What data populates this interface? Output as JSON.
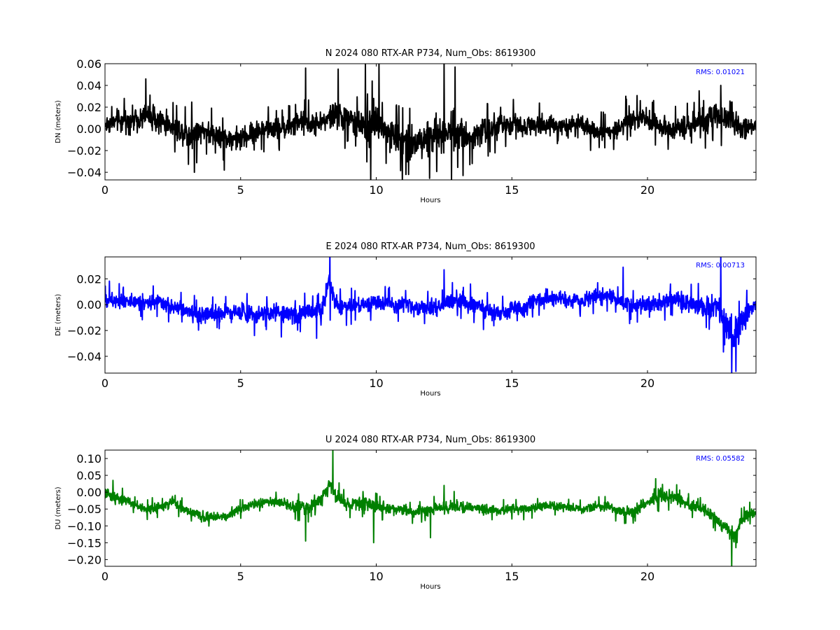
{
  "chart_data": [
    {
      "type": "line",
      "title": "N 2024 080 RTX-AR  P734, Num_Obs: 8619300",
      "xlabel": "Hours",
      "ylabel": "DN (meters)",
      "xlim": [
        0,
        24
      ],
      "ylim": [
        -0.047,
        0.06
      ],
      "xticks": [
        0,
        5,
        10,
        15,
        20
      ],
      "yticks": [
        -0.04,
        -0.02,
        0.0,
        0.02,
        0.04,
        0.06
      ],
      "ytick_labels": [
        "−0.04",
        "−0.02",
        "0.00",
        "0.02",
        "0.04",
        "0.06"
      ],
      "annotation": "RMS:  0.01021",
      "grid": false,
      "series": [
        {
          "color": "#000000",
          "x": [
            0,
            0.5,
            1,
            1.5,
            2,
            2.5,
            3,
            3.3,
            3.5,
            4,
            4.5,
            5,
            5.5,
            6,
            6.5,
            7,
            7.4,
            7.5,
            8,
            8.5,
            9,
            9.5,
            9.7,
            9.9,
            10.2,
            10.5,
            11,
            11.5,
            12,
            12.5,
            12.9,
            13.2,
            13.5,
            14,
            14.5,
            15,
            15.5,
            16,
            16.5,
            17,
            17.5,
            18,
            18.5,
            19,
            19.2,
            19.5,
            20,
            20.5,
            21,
            21.5,
            22,
            22.5,
            23,
            23.5,
            24
          ],
          "center": [
            0.004,
            0.007,
            0.008,
            0.012,
            0.008,
            0.002,
            -0.004,
            -0.006,
            0.0,
            -0.005,
            -0.008,
            -0.01,
            -0.003,
            0.0,
            0.001,
            0.003,
            0.006,
            0.004,
            0.006,
            0.013,
            0.008,
            0.003,
            0.0,
            0.006,
            0.002,
            -0.006,
            -0.01,
            -0.012,
            -0.008,
            -0.004,
            0.0,
            -0.004,
            -0.006,
            0.0,
            0.002,
            0.004,
            0.003,
            0.005,
            0.004,
            0.002,
            0.003,
            -0.002,
            -0.003,
            0.0,
            0.008,
            0.01,
            0.008,
            0.002,
            0.0,
            0.003,
            0.006,
            0.012,
            0.008,
            0.0,
            0.002
          ],
          "amp": [
            0.013,
            0.014,
            0.015,
            0.018,
            0.016,
            0.014,
            0.018,
            0.022,
            0.016,
            0.015,
            0.014,
            0.016,
            0.014,
            0.013,
            0.014,
            0.015,
            0.018,
            0.015,
            0.015,
            0.02,
            0.017,
            0.015,
            0.026,
            0.03,
            0.02,
            0.022,
            0.026,
            0.025,
            0.024,
            0.03,
            0.03,
            0.022,
            0.02,
            0.018,
            0.016,
            0.015,
            0.014,
            0.014,
            0.013,
            0.012,
            0.013,
            0.012,
            0.012,
            0.013,
            0.014,
            0.013,
            0.014,
            0.013,
            0.014,
            0.014,
            0.016,
            0.018,
            0.016,
            0.014,
            0.013
          ],
          "spikes": [
            [
              1.5,
              0.046
            ],
            [
              3.3,
              -0.04
            ],
            [
              4.4,
              -0.038
            ],
            [
              7.4,
              0.056
            ],
            [
              8.6,
              0.055
            ],
            [
              9.6,
              0.06
            ],
            [
              9.8,
              -0.047
            ],
            [
              10.1,
              0.06
            ],
            [
              11.1,
              -0.042
            ],
            [
              12.5,
              0.06
            ],
            [
              12.9,
              0.057
            ],
            [
              13.2,
              -0.043
            ],
            [
              19.2,
              0.03
            ],
            [
              21.9,
              0.035
            ],
            [
              22.7,
              0.04
            ]
          ]
        }
      ]
    },
    {
      "type": "line",
      "title": "E 2024 080 RTX-AR  P734, Num_Obs: 8619300",
      "xlabel": "Hours",
      "ylabel": "DE (meters)",
      "xlim": [
        0,
        24
      ],
      "ylim": [
        -0.053,
        0.037
      ],
      "xticks": [
        0,
        5,
        10,
        15,
        20
      ],
      "yticks": [
        -0.04,
        -0.02,
        0.0,
        0.02
      ],
      "ytick_labels": [
        "−0.04",
        "−0.02",
        "0.00",
        "0.02"
      ],
      "annotation": "RMS:  0.00713",
      "grid": false,
      "series": [
        {
          "color": "#0000ff",
          "x": [
            0,
            0.5,
            1,
            1.5,
            2,
            2.5,
            3,
            3.5,
            4,
            4.5,
            5,
            5.5,
            6,
            6.5,
            7,
            7.5,
            8,
            8.3,
            8.5,
            9,
            9.5,
            10,
            10.5,
            11,
            11.5,
            12,
            12.5,
            13,
            13.5,
            14,
            14.5,
            15,
            15.5,
            16,
            16.5,
            17,
            17.5,
            18,
            18.5,
            19,
            19.5,
            20,
            20.5,
            21,
            21.5,
            22,
            22.5,
            23,
            23.2,
            23.5,
            24
          ],
          "center": [
            0.004,
            0.004,
            0.003,
            0.002,
            0.001,
            -0.002,
            -0.004,
            -0.008,
            -0.006,
            -0.005,
            -0.006,
            -0.008,
            -0.006,
            -0.006,
            -0.008,
            -0.006,
            -0.003,
            0.02,
            0.0,
            -0.002,
            0.0,
            0.002,
            0.0,
            0.0,
            -0.002,
            -0.003,
            0.0,
            0.005,
            0.0,
            -0.004,
            -0.006,
            -0.004,
            -0.002,
            0.004,
            0.005,
            0.004,
            0.003,
            0.006,
            0.008,
            0.003,
            -0.002,
            0.0,
            0.002,
            0.004,
            0.0,
            -0.002,
            0.0,
            -0.018,
            -0.025,
            -0.012,
            0.002
          ],
          "amp": [
            0.009,
            0.009,
            0.009,
            0.009,
            0.008,
            0.009,
            0.009,
            0.009,
            0.01,
            0.009,
            0.01,
            0.01,
            0.009,
            0.009,
            0.01,
            0.01,
            0.009,
            0.015,
            0.01,
            0.009,
            0.009,
            0.009,
            0.009,
            0.009,
            0.009,
            0.009,
            0.01,
            0.012,
            0.01,
            0.01,
            0.01,
            0.01,
            0.009,
            0.009,
            0.009,
            0.009,
            0.009,
            0.009,
            0.009,
            0.009,
            0.009,
            0.009,
            0.009,
            0.01,
            0.01,
            0.012,
            0.014,
            0.018,
            0.02,
            0.014,
            0.011
          ],
          "spikes": [
            [
              8.3,
              0.037
            ],
            [
              8.3,
              -0.012
            ],
            [
              7.8,
              -0.026
            ],
            [
              12.5,
              0.027
            ],
            [
              19.1,
              0.029
            ],
            [
              22.7,
              0.037
            ],
            [
              23.1,
              -0.053
            ],
            [
              6.5,
              -0.025
            ]
          ]
        }
      ]
    },
    {
      "type": "line",
      "title": "U 2024 080 RTX-AR  P734, Num_Obs: 8619300",
      "xlabel": "Hours",
      "ylabel": "DU (meters)",
      "xlim": [
        0,
        24
      ],
      "ylim": [
        -0.22,
        0.125
      ],
      "xticks": [
        0,
        5,
        10,
        15,
        20
      ],
      "yticks": [
        -0.2,
        -0.15,
        -0.1,
        -0.05,
        0.0,
        0.05,
        0.1
      ],
      "ytick_labels": [
        "−0.20",
        "−0.15",
        "−0.10",
        "−0.05",
        "0.00",
        "0.05",
        "0.10"
      ],
      "annotation": "RMS:  0.05582",
      "grid": false,
      "series": [
        {
          "color": "#008000",
          "x": [
            0,
            0.3,
            0.6,
            1,
            1.5,
            2,
            2.5,
            3,
            3.5,
            4,
            4.5,
            5,
            5.5,
            6,
            6.5,
            7,
            7.5,
            8,
            8.3,
            8.5,
            9,
            9.5,
            10,
            10.5,
            11,
            11.5,
            12,
            12.5,
            13,
            13.5,
            14,
            14.5,
            15,
            15.5,
            16,
            16.5,
            17,
            17.5,
            18,
            18.5,
            19,
            19.5,
            20,
            20.5,
            21,
            21.5,
            22,
            22.5,
            23,
            23.2,
            23.5,
            24
          ],
          "center": [
            -0.005,
            -0.012,
            -0.02,
            -0.035,
            -0.05,
            -0.045,
            -0.03,
            -0.055,
            -0.07,
            -0.075,
            -0.07,
            -0.05,
            -0.035,
            -0.03,
            -0.03,
            -0.045,
            -0.045,
            -0.02,
            0.03,
            -0.01,
            -0.04,
            -0.03,
            -0.04,
            -0.05,
            -0.055,
            -0.06,
            -0.05,
            -0.045,
            -0.04,
            -0.045,
            -0.05,
            -0.055,
            -0.05,
            -0.05,
            -0.045,
            -0.04,
            -0.045,
            -0.05,
            -0.045,
            -0.04,
            -0.06,
            -0.055,
            -0.03,
            -0.01,
            -0.015,
            -0.035,
            -0.05,
            -0.075,
            -0.12,
            -0.13,
            -0.08,
            -0.055
          ],
          "amp": [
            0.025,
            0.025,
            0.022,
            0.02,
            0.02,
            0.02,
            0.022,
            0.022,
            0.022,
            0.022,
            0.022,
            0.022,
            0.02,
            0.02,
            0.02,
            0.024,
            0.028,
            0.028,
            0.04,
            0.032,
            0.028,
            0.028,
            0.028,
            0.024,
            0.022,
            0.024,
            0.028,
            0.03,
            0.03,
            0.026,
            0.022,
            0.02,
            0.02,
            0.02,
            0.02,
            0.02,
            0.02,
            0.018,
            0.02,
            0.02,
            0.022,
            0.024,
            0.026,
            0.028,
            0.026,
            0.024,
            0.024,
            0.028,
            0.03,
            0.032,
            0.026,
            0.024
          ],
          "spikes": [
            [
              8.4,
              0.125
            ],
            [
              7.4,
              -0.145
            ],
            [
              9.9,
              -0.15
            ],
            [
              12.0,
              -0.135
            ],
            [
              23.1,
              -0.22
            ],
            [
              20.3,
              0.04
            ],
            [
              0.3,
              0.035
            ],
            [
              12.5,
              0.02
            ]
          ]
        }
      ]
    }
  ]
}
